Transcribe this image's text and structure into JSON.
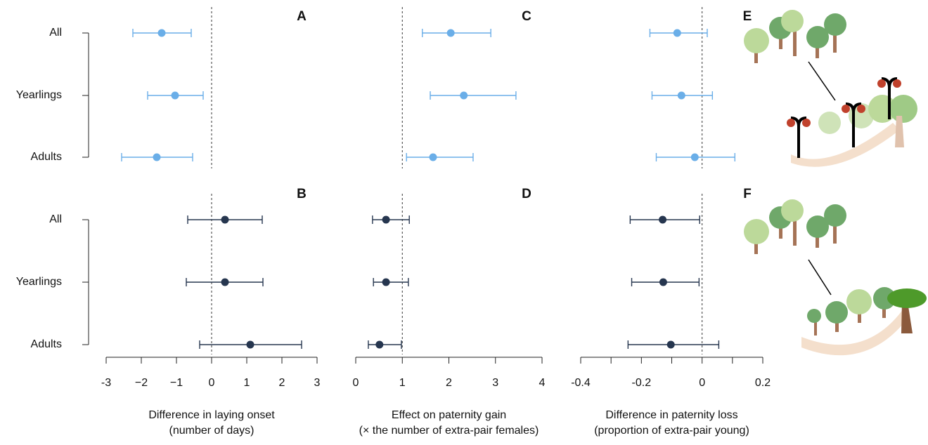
{
  "row_labels": [
    "All",
    "Yearlings",
    "Adults"
  ],
  "chart_data": [
    {
      "type": "forest",
      "panel": "A",
      "color": "#6aaee8",
      "xlim": [
        -3,
        3
      ],
      "ref_line": 0,
      "values": [
        -1.42,
        -1.04,
        -1.56
      ],
      "lower": [
        -2.24,
        -1.82,
        -2.56
      ],
      "upper": [
        -0.58,
        -0.24,
        -0.54
      ]
    },
    {
      "type": "forest",
      "panel": "B",
      "color": "#26364f",
      "xlim": [
        -3,
        3
      ],
      "ref_line": 0,
      "values": [
        0.38,
        0.38,
        1.1
      ],
      "lower": [
        -0.68,
        -0.72,
        -0.34
      ],
      "upper": [
        1.44,
        1.46,
        2.56
      ],
      "xticks": [
        -3,
        {
          "value": -2,
          "label": "−2"
        },
        {
          "value": -1,
          "label": "−1"
        },
        0,
        1,
        2,
        3
      ],
      "xlabel": [
        "Difference in laying onset",
        "(number of days)"
      ]
    },
    {
      "type": "forest",
      "panel": "C",
      "color": "#6aaee8",
      "xlim": [
        0,
        4
      ],
      "ref_line": 1,
      "values": [
        2.04,
        2.32,
        1.66
      ],
      "lower": [
        1.43,
        1.6,
        1.09
      ],
      "upper": [
        2.9,
        3.44,
        2.52
      ]
    },
    {
      "type": "forest",
      "panel": "D",
      "color": "#26364f",
      "xlim": [
        0,
        4
      ],
      "ref_line": 1,
      "values": [
        0.65,
        0.65,
        0.51
      ],
      "lower": [
        0.36,
        0.38,
        0.27
      ],
      "upper": [
        1.15,
        1.13,
        0.98
      ],
      "xticks": [
        0,
        1,
        2,
        3,
        4
      ],
      "xlabel": [
        "Effect on paternity gain",
        "(× the number of extra-pair females)"
      ]
    },
    {
      "type": "forest",
      "panel": "E",
      "color": "#6aaee8",
      "xlim": [
        -0.4,
        0.2
      ],
      "ref_line": 0,
      "values": [
        -0.082,
        -0.068,
        -0.024
      ],
      "lower": [
        -0.172,
        -0.165,
        -0.151
      ],
      "upper": [
        0.017,
        0.034,
        0.108
      ]
    },
    {
      "type": "forest",
      "panel": "F",
      "color": "#26364f",
      "xlim": [
        -0.4,
        0.2
      ],
      "ref_line": 0,
      "values": [
        -0.13,
        -0.128,
        -0.103
      ],
      "lower": [
        -0.237,
        -0.232,
        -0.244
      ],
      "upper": [
        -0.008,
        -0.01,
        0.055
      ],
      "xticks": [
        -0.4,
        -0.2,
        0,
        0.2
      ],
      "xminor_ticks": [
        -0.3,
        -0.1,
        0.1
      ],
      "xlabel": [
        "Difference in paternity loss",
        "(proportion of extra-pair young)"
      ]
    }
  ]
}
